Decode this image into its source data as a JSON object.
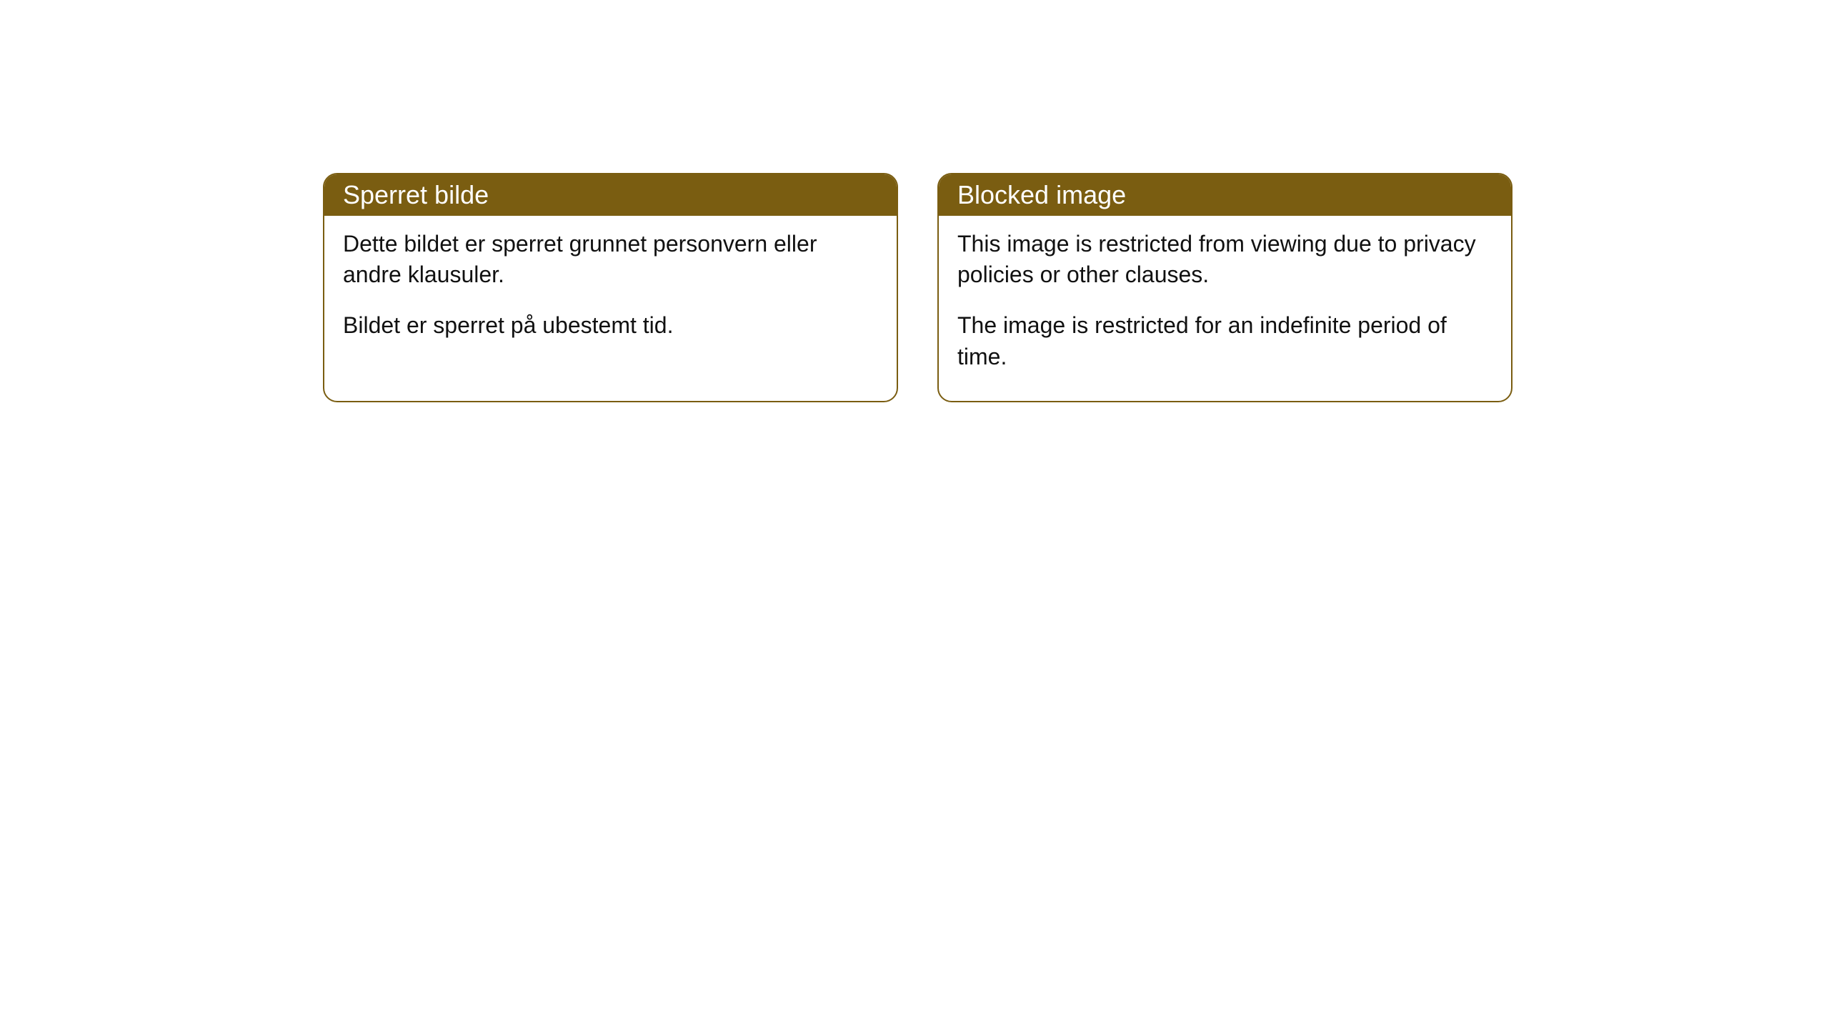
{
  "cards": [
    {
      "title": "Sperret bilde",
      "paragraph1": "Dette bildet er sperret grunnet personvern eller andre klausuler.",
      "paragraph2": "Bildet er sperret på ubestemt tid."
    },
    {
      "title": "Blocked image",
      "paragraph1": "This image is restricted from viewing due to privacy policies or other clauses.",
      "paragraph2": "The image is restricted for an indefinite period of time."
    }
  ],
  "styling": {
    "card_border_color": "#7a5d11",
    "card_header_bg": "#7a5d11",
    "card_header_text_color": "#ffffff",
    "card_body_bg": "#ffffff",
    "card_body_text_color": "#111111",
    "border_radius": 20,
    "header_fontsize": 36,
    "body_fontsize": 32
  }
}
